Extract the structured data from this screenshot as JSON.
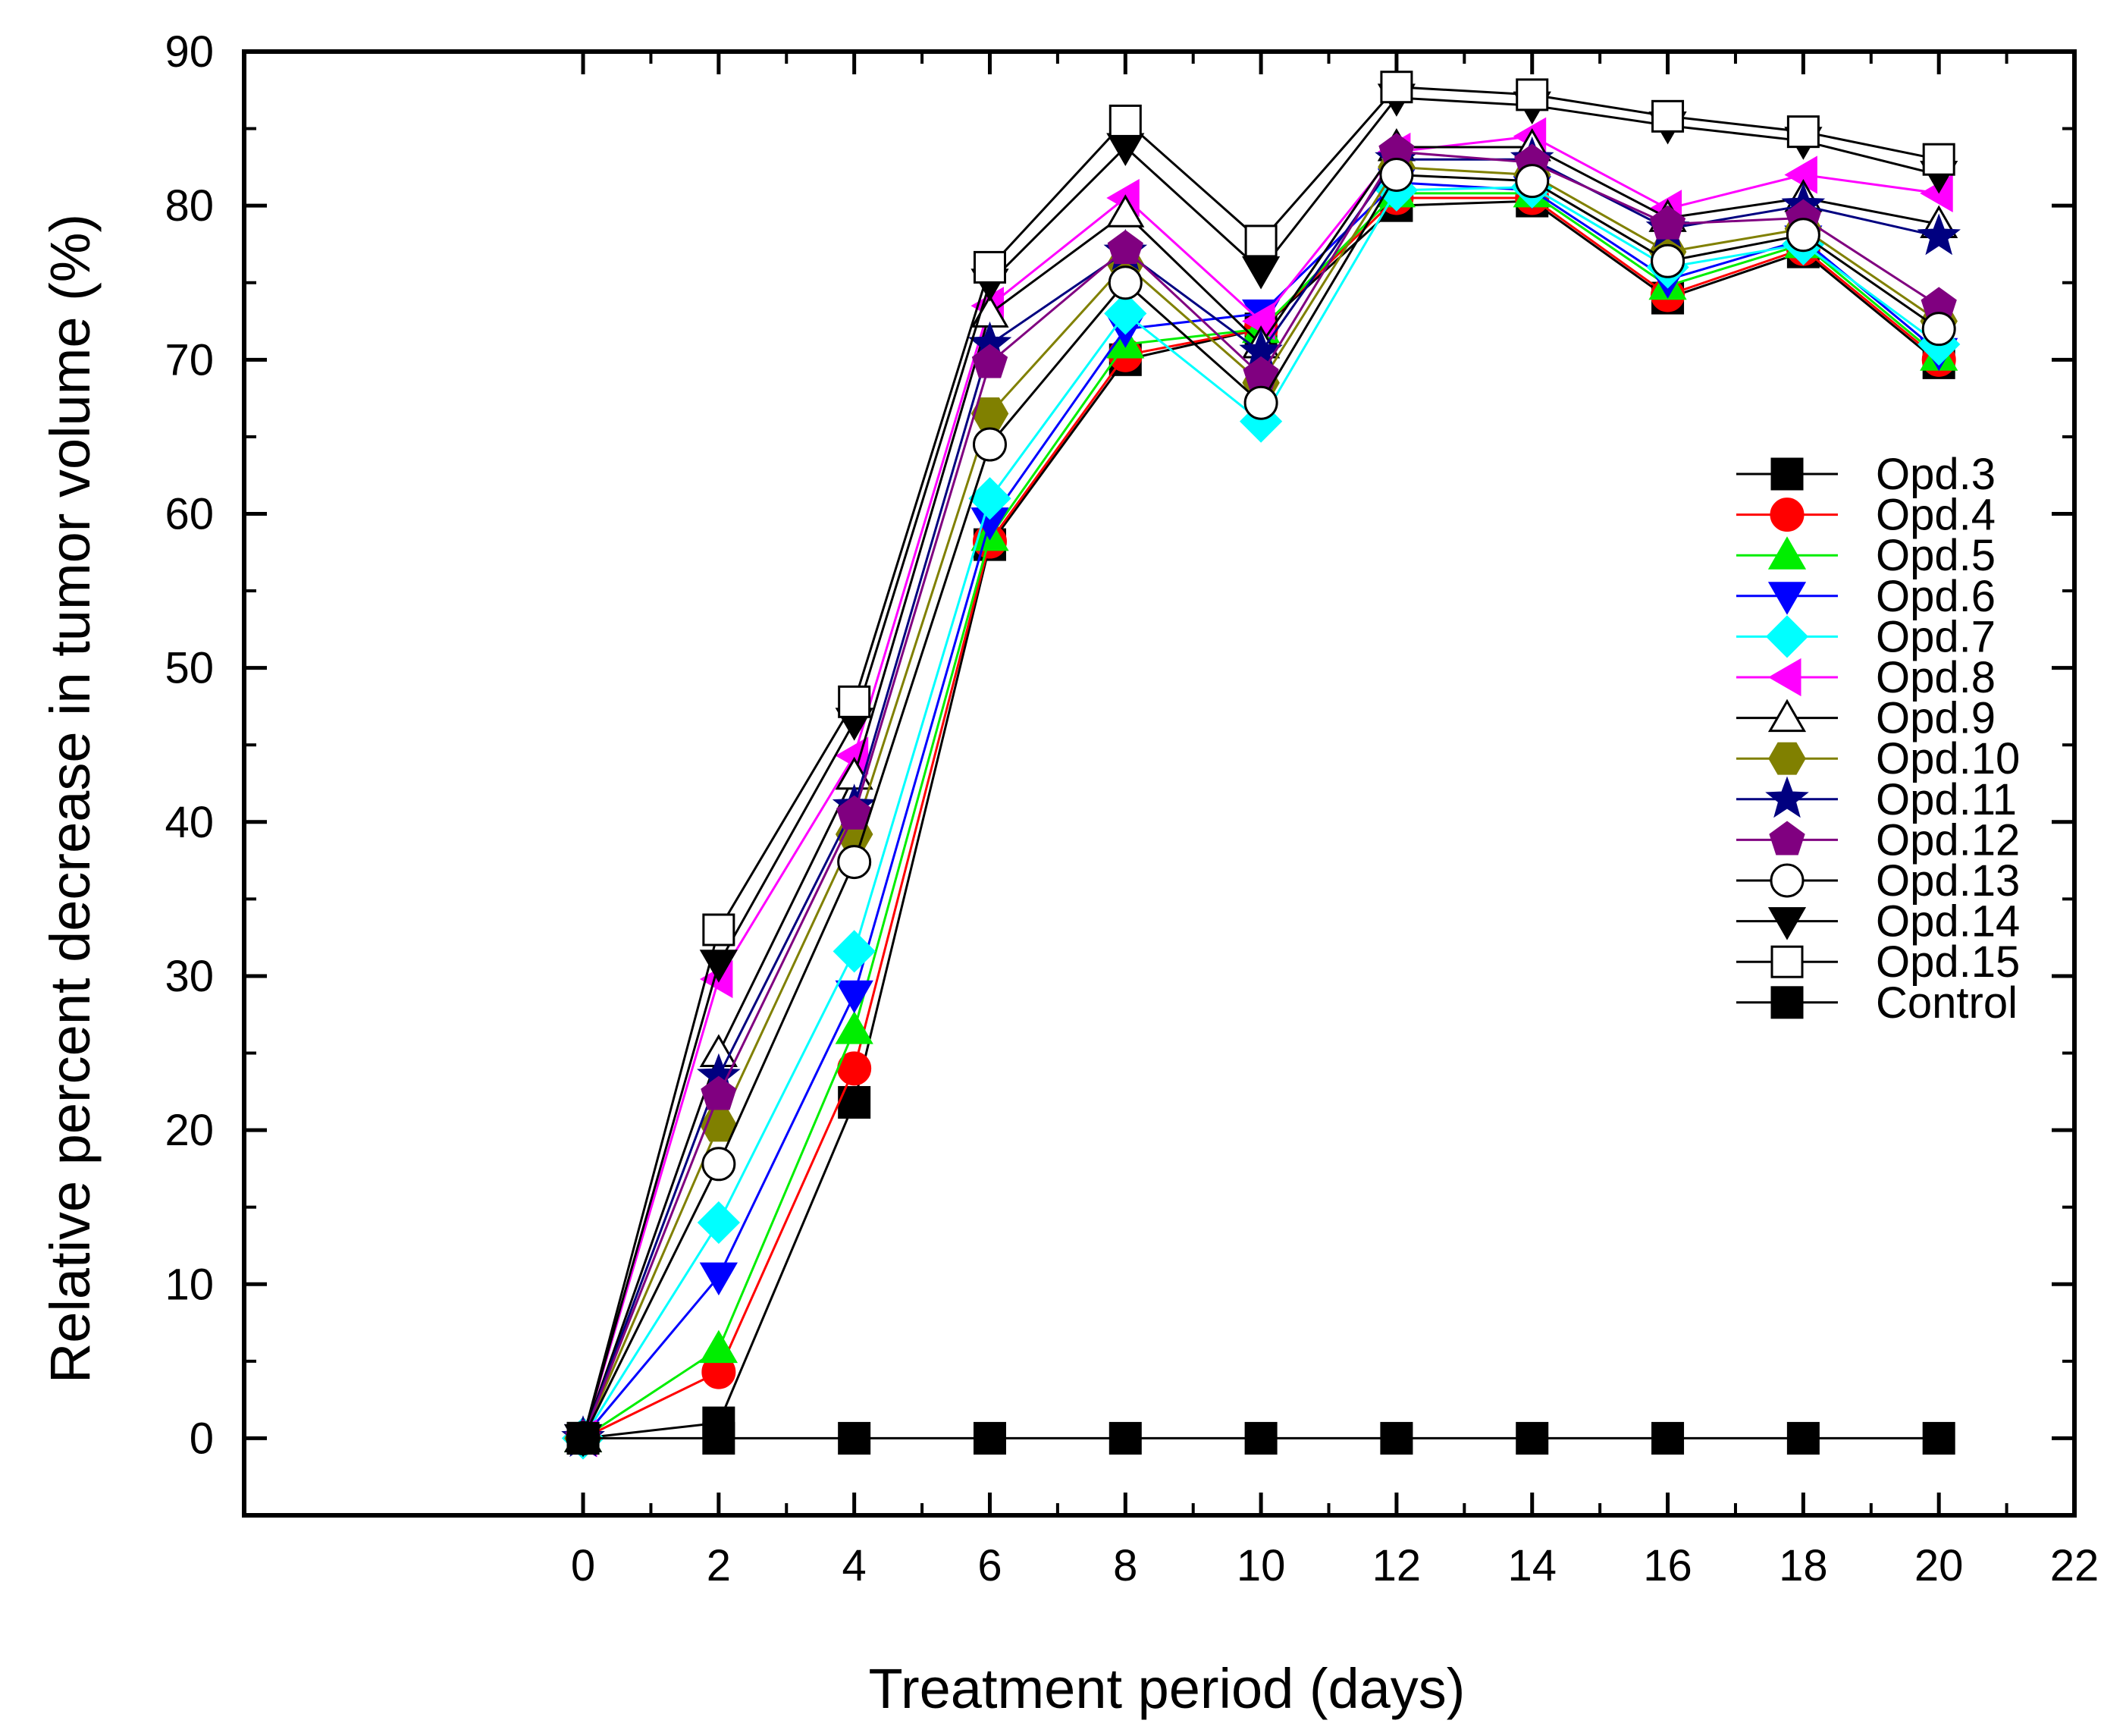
{
  "chart_data": {
    "type": "line",
    "title": "",
    "xlabel": "Treatment period (days)",
    "ylabel": "Relative percent decrease in tumor volume (%)",
    "xlim": [
      -5,
      22
    ],
    "ylim": [
      -5,
      90
    ],
    "xticks": [
      0,
      2,
      4,
      6,
      8,
      10,
      12,
      14,
      16,
      18,
      20,
      22
    ],
    "yticks": [
      0,
      10,
      20,
      30,
      40,
      50,
      60,
      70,
      80,
      90
    ],
    "x": [
      0,
      2,
      4,
      6,
      8,
      10,
      12,
      14,
      16,
      18,
      20
    ],
    "legend_position": "right",
    "series": [
      {
        "name": "Opd.3",
        "marker": "square",
        "color": "#000000",
        "fill": "#000000",
        "values": [
          0,
          1.0,
          21.8,
          58.0,
          70.0,
          72.0,
          80.0,
          80.3,
          74.0,
          77.0,
          69.8
        ]
      },
      {
        "name": "Opd.4",
        "marker": "circle",
        "color": "#ff0000",
        "fill": "#ff0000",
        "values": [
          0,
          4.3,
          24.0,
          58.2,
          70.3,
          72.0,
          80.5,
          80.5,
          74.2,
          77.2,
          70.0
        ]
      },
      {
        "name": "Opd.5",
        "marker": "triangle-up",
        "color": "#00ee00",
        "fill": "#00ee00",
        "values": [
          0,
          5.8,
          26.5,
          58.5,
          71.0,
          72.0,
          80.8,
          80.8,
          74.8,
          77.5,
          70.2
        ]
      },
      {
        "name": "Opd.6",
        "marker": "triangle-down",
        "color": "#0000ff",
        "fill": "#0000ff",
        "values": [
          0,
          10.5,
          28.8,
          59.5,
          72.0,
          73.0,
          81.5,
          81.0,
          75.2,
          77.8,
          70.5
        ]
      },
      {
        "name": "Opd.7",
        "marker": "diamond",
        "color": "#00ffff",
        "fill": "#00ffff",
        "values": [
          0,
          14.0,
          31.6,
          61.0,
          73.0,
          66.0,
          81.0,
          81.2,
          76.0,
          77.5,
          71.0
        ]
      },
      {
        "name": "Opd.8",
        "marker": "triangle-left",
        "color": "#ff00ff",
        "fill": "#ff00ff",
        "values": [
          0,
          29.8,
          44.3,
          73.5,
          80.5,
          72.5,
          83.5,
          84.5,
          79.8,
          82.0,
          80.8
        ]
      },
      {
        "name": "Opd.9",
        "marker": "triangle-up",
        "color": "#000000",
        "fill": "#ffffff",
        "values": [
          0,
          25.0,
          43.0,
          73.0,
          79.5,
          71.0,
          83.8,
          83.8,
          79.2,
          80.5,
          78.8
        ]
      },
      {
        "name": "Opd.10",
        "marker": "hexagon",
        "color": "#808000",
        "fill": "#808000",
        "values": [
          0,
          20.3,
          39.2,
          66.5,
          76.2,
          68.5,
          82.5,
          82.0,
          77.0,
          78.5,
          72.5
        ]
      },
      {
        "name": "Opd.11",
        "marker": "star",
        "color": "#000080",
        "fill": "#000080",
        "values": [
          0,
          23.5,
          41.0,
          71.0,
          77.0,
          70.5,
          83.0,
          83.0,
          78.5,
          80.0,
          78.0
        ]
      },
      {
        "name": "Opd.12",
        "marker": "pentagon",
        "color": "#800080",
        "fill": "#800080",
        "values": [
          0,
          22.3,
          40.5,
          69.8,
          77.2,
          69.0,
          83.5,
          82.8,
          78.8,
          79.2,
          73.5
        ]
      },
      {
        "name": "Opd.13",
        "marker": "circle",
        "color": "#000000",
        "fill": "#ffffff",
        "values": [
          0,
          17.8,
          37.4,
          64.5,
          75.0,
          67.2,
          82.0,
          81.6,
          76.4,
          78.1,
          72.0
        ]
      },
      {
        "name": "Opd.14",
        "marker": "triangle-down",
        "color": "#000000",
        "fill": "#000000",
        "values": [
          0,
          30.8,
          46.5,
          75.0,
          83.8,
          75.8,
          87.0,
          86.5,
          85.2,
          84.2,
          82.0
        ]
      },
      {
        "name": "Opd.15",
        "marker": "square",
        "color": "#000000",
        "fill": "#ffffff",
        "values": [
          0,
          33.0,
          47.8,
          76.0,
          85.5,
          77.7,
          87.7,
          87.2,
          85.8,
          84.8,
          83.0
        ]
      },
      {
        "name": "Control",
        "marker": "square",
        "color": "#000000",
        "fill": "#000000",
        "values": [
          0,
          0,
          0,
          0,
          0,
          0,
          0,
          0,
          0,
          0,
          0
        ]
      }
    ]
  }
}
